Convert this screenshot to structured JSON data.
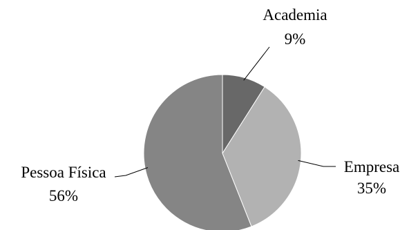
{
  "chart_data": {
    "type": "pie",
    "title": "",
    "categories": [
      "Academia",
      "Empresa",
      "Pessoa Física"
    ],
    "values": [
      9,
      35,
      56
    ],
    "percent_labels": [
      "9%",
      "35%",
      "56%"
    ],
    "colors": [
      "#686868",
      "#b2b2b2",
      "#858585"
    ],
    "slice_edge_color": "#ffffff",
    "legend": "none",
    "start_angle": "12 o'clock",
    "direction": "clockwise",
    "label_placement": "outside with leader lines"
  }
}
